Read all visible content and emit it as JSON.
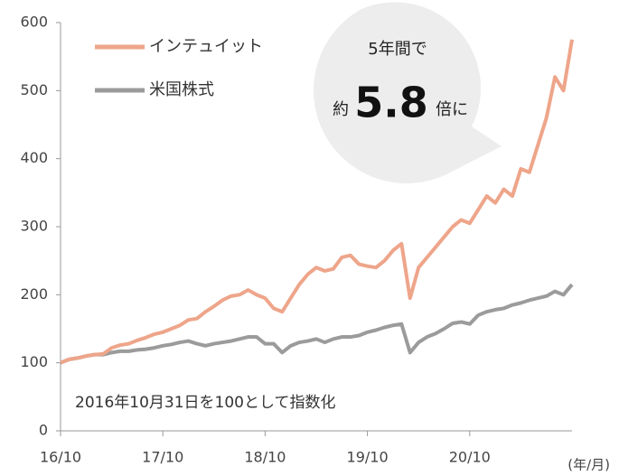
{
  "chart_data": {
    "type": "line",
    "x": [
      "16/10",
      "16/11",
      "16/12",
      "17/01",
      "17/02",
      "17/03",
      "17/04",
      "17/05",
      "17/06",
      "17/07",
      "17/08",
      "17/09",
      "17/10",
      "17/11",
      "17/12",
      "18/01",
      "18/02",
      "18/03",
      "18/04",
      "18/05",
      "18/06",
      "18/07",
      "18/08",
      "18/09",
      "18/10",
      "18/11",
      "18/12",
      "19/01",
      "19/02",
      "19/03",
      "19/04",
      "19/05",
      "19/06",
      "19/07",
      "19/08",
      "19/09",
      "19/10",
      "19/11",
      "19/12",
      "20/01",
      "20/02",
      "20/03",
      "20/04",
      "20/05",
      "20/06",
      "20/07",
      "20/08",
      "20/09",
      "20/10",
      "20/11",
      "20/12",
      "21/01",
      "21/02",
      "21/03",
      "21/04",
      "21/05",
      "21/06",
      "21/07",
      "21/08",
      "21/09",
      "21/10"
    ],
    "series": [
      {
        "name": "インテュイット",
        "color": "#eea58a",
        "values": [
          100,
          105,
          107,
          110,
          112,
          113,
          122,
          126,
          128,
          133,
          137,
          142,
          145,
          150,
          155,
          163,
          165,
          175,
          183,
          192,
          198,
          200,
          207,
          200,
          195,
          180,
          175,
          195,
          215,
          230,
          240,
          235,
          238,
          255,
          258,
          245,
          242,
          240,
          250,
          265,
          275,
          195,
          240,
          255,
          270,
          285,
          300,
          310,
          305,
          325,
          345,
          335,
          355,
          345,
          385,
          380,
          420,
          460,
          520,
          500,
          575
        ]
      },
      {
        "name": "米国株式",
        "color": "#9b9b9b",
        "values": [
          100,
          105,
          107,
          110,
          112,
          112,
          115,
          117,
          117,
          119,
          120,
          122,
          125,
          127,
          130,
          132,
          128,
          125,
          128,
          130,
          132,
          135,
          138,
          138,
          128,
          128,
          115,
          125,
          130,
          132,
          135,
          130,
          135,
          138,
          138,
          140,
          145,
          148,
          152,
          155,
          157,
          115,
          130,
          138,
          143,
          150,
          158,
          160,
          157,
          170,
          175,
          178,
          180,
          185,
          188,
          192,
          195,
          198,
          205,
          200,
          215
        ]
      }
    ],
    "xlim": [
      "16/10",
      "21/10"
    ],
    "xticks": [
      "16/10",
      "17/10",
      "18/10",
      "19/10",
      "20/10"
    ],
    "x_label": "(年/月)",
    "ylim": [
      0,
      600
    ],
    "yticks": [
      0,
      100,
      200,
      300,
      400,
      500,
      600
    ],
    "legend": "upper left",
    "note": "2016年10月31日を100として指数化",
    "annotation": {
      "line1": "5年間で",
      "prefix": "約",
      "number": "5.8",
      "suffix": "倍に"
    }
  }
}
